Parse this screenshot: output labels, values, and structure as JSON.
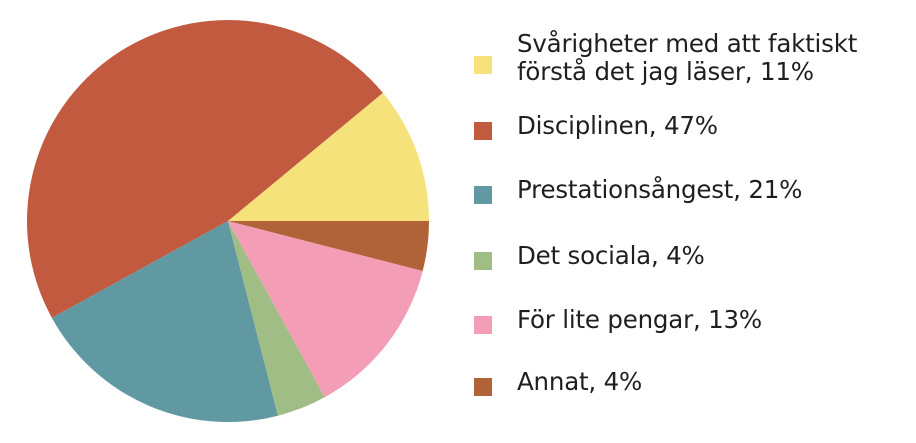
{
  "chart_data": {
    "type": "pie",
    "title": "",
    "legend_position": "right",
    "slices": [
      {
        "label": "Svårigheter med att faktiskt förstå det jag läser, 11%",
        "value": 11,
        "color": "#f6e27a"
      },
      {
        "label": "Disciplinen, 47%",
        "value": 47,
        "color": "#c25a40"
      },
      {
        "label": "Prestationsångest, 21%",
        "value": 21,
        "color": "#6199a3"
      },
      {
        "label": "Det sociala, 4%",
        "value": 4,
        "color": "#a1bd86"
      },
      {
        "label": "För lite pengar, 13%",
        "value": 13,
        "color": "#f49db6"
      },
      {
        "label": "Annat, 4%",
        "value": 4,
        "color": "#b06238"
      }
    ]
  }
}
